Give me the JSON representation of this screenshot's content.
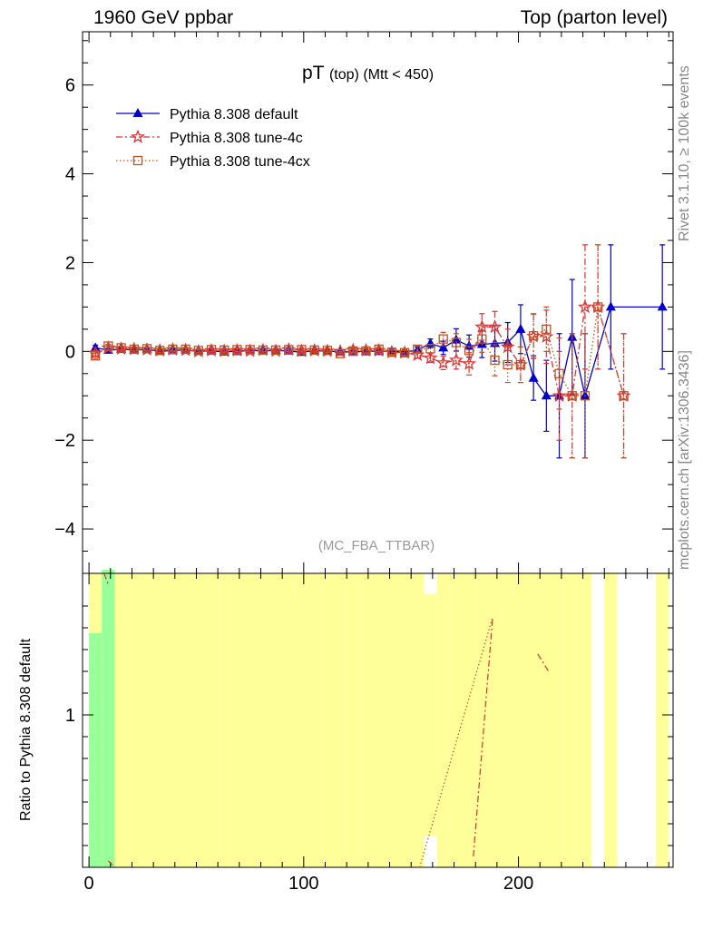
{
  "header": {
    "left": "1960 GeV ppbar",
    "right": "Top (parton level)"
  },
  "side": {
    "rivet": "Rivet 3.1.10, ≥ 100k events",
    "mcplots": "mcplots.cern.ch [arXiv:1306.3436]"
  },
  "colors": {
    "default": "#0000cc",
    "tune4c": "#dd3333",
    "tune4cx": "#bb5522",
    "band_yellow": "#ffff99",
    "band_green": "#99ff99"
  },
  "chart_data": {
    "type": "line",
    "title_main": "pT",
    "title_sub1": "(top)",
    "title_sub2": "(Mtt < 450)",
    "watermark": "(MC_FBA_TTBAR)",
    "ylabel_ratio": "Ratio to Pythia 8.308 default",
    "xlim": [
      -3,
      272
    ],
    "ylim": [
      -5,
      7.2
    ],
    "ratio_ylim": [
      0.3,
      1.65
    ],
    "x_ticks": [
      0,
      100,
      200
    ],
    "y_ticks": [
      -4,
      -2,
      0,
      2,
      4,
      6
    ],
    "ratio_y_ticks": [
      1
    ],
    "legend_position": "top-left",
    "series": [
      {
        "name": "Pythia 8.308 default",
        "marker": "triangle",
        "color": "#0000cc",
        "x": [
          3,
          9,
          15,
          21,
          27,
          33,
          39,
          45,
          51,
          57,
          63,
          69,
          75,
          81,
          87,
          93,
          99,
          105,
          111,
          117,
          123,
          129,
          135,
          141,
          147,
          153,
          159,
          165,
          171,
          177,
          183,
          189,
          195,
          201,
          207,
          213,
          219,
          225,
          231,
          243,
          267
        ],
        "y": [
          0.08,
          0.03,
          0.05,
          0.03,
          0.04,
          0.0,
          0.02,
          0.03,
          0.0,
          0.01,
          -0.01,
          0.0,
          0.02,
          0.01,
          0.02,
          0.01,
          -0.02,
          0.02,
          0.0,
          0.0,
          -0.02,
          0.01,
          0.0,
          0.01,
          -0.02,
          0.03,
          0.18,
          0.08,
          0.26,
          0.12,
          0.16,
          0.18,
          0.2,
          0.5,
          -0.6,
          -1.0,
          -1.0,
          0.32,
          -1.0,
          1.0,
          1.0
        ],
        "err": [
          0.06,
          0.04,
          0.04,
          0.04,
          0.04,
          0.04,
          0.04,
          0.04,
          0.04,
          0.04,
          0.04,
          0.04,
          0.04,
          0.04,
          0.04,
          0.04,
          0.04,
          0.04,
          0.04,
          0.04,
          0.04,
          0.05,
          0.05,
          0.05,
          0.06,
          0.07,
          0.1,
          0.15,
          0.25,
          0.25,
          0.3,
          0.4,
          0.45,
          0.55,
          0.5,
          0.8,
          1.4,
          1.3,
          1.4,
          1.4,
          1.4
        ]
      },
      {
        "name": "Pythia 8.308 tune-4c",
        "marker": "star",
        "color": "#dd3333",
        "x": [
          3,
          9,
          15,
          21,
          27,
          33,
          39,
          45,
          51,
          57,
          63,
          69,
          75,
          81,
          87,
          93,
          99,
          105,
          111,
          117,
          123,
          129,
          135,
          141,
          147,
          153,
          159,
          165,
          171,
          177,
          183,
          189,
          195,
          201,
          207,
          213,
          219,
          225,
          231,
          237,
          249
        ],
        "y": [
          -0.04,
          0.08,
          0.06,
          0.05,
          0.04,
          0.02,
          0.04,
          0.03,
          0.0,
          0.02,
          0.01,
          0.02,
          0.01,
          0.03,
          0.01,
          0.04,
          0.01,
          0.02,
          0.01,
          0.0,
          0.03,
          0.02,
          0.02,
          -0.02,
          -0.03,
          -0.08,
          -0.15,
          -0.26,
          -0.2,
          -0.28,
          0.55,
          0.55,
          0.1,
          -0.3,
          0.34,
          0.33,
          -1.0,
          -1.0,
          1.0,
          1.0,
          -1.0
        ],
        "err": [
          0.06,
          0.04,
          0.04,
          0.04,
          0.04,
          0.04,
          0.04,
          0.04,
          0.04,
          0.04,
          0.04,
          0.04,
          0.04,
          0.04,
          0.04,
          0.04,
          0.04,
          0.04,
          0.04,
          0.04,
          0.04,
          0.05,
          0.05,
          0.05,
          0.06,
          0.07,
          0.1,
          0.15,
          0.2,
          0.25,
          0.3,
          0.35,
          0.4,
          0.4,
          0.5,
          0.6,
          1.0,
          1.4,
          1.4,
          1.4,
          1.4
        ]
      },
      {
        "name": "Pythia 8.308 tune-4cx",
        "marker": "square",
        "color": "#bb5522",
        "x": [
          3,
          9,
          15,
          21,
          27,
          33,
          39,
          45,
          51,
          57,
          63,
          69,
          75,
          81,
          87,
          93,
          99,
          105,
          111,
          117,
          123,
          129,
          135,
          141,
          147,
          153,
          159,
          165,
          171,
          177,
          183,
          189,
          195,
          201,
          207,
          213,
          219,
          225,
          231,
          237,
          249
        ],
        "y": [
          -0.1,
          0.12,
          0.08,
          0.05,
          0.06,
          0.02,
          0.05,
          0.05,
          0.02,
          0.04,
          0.03,
          0.04,
          0.04,
          0.03,
          0.03,
          0.04,
          0.04,
          0.03,
          0.02,
          -0.05,
          0.01,
          0.01,
          0.05,
          -0.02,
          -0.03,
          0.05,
          0.06,
          0.28,
          0.2,
          0.02,
          0.28,
          -0.2,
          -0.3,
          -0.3,
          0.35,
          0.5,
          -0.5,
          -1.0,
          -1.0,
          1.0,
          -1.0
        ],
        "err": [
          0.06,
          0.04,
          0.04,
          0.04,
          0.04,
          0.04,
          0.04,
          0.04,
          0.04,
          0.04,
          0.04,
          0.04,
          0.04,
          0.04,
          0.04,
          0.04,
          0.04,
          0.04,
          0.04,
          0.04,
          0.04,
          0.05,
          0.05,
          0.05,
          0.06,
          0.07,
          0.1,
          0.15,
          0.2,
          0.25,
          0.3,
          0.35,
          0.4,
          0.4,
          0.5,
          0.5,
          0.8,
          1.4,
          1.4,
          1.4,
          1.4
        ]
      }
    ]
  }
}
